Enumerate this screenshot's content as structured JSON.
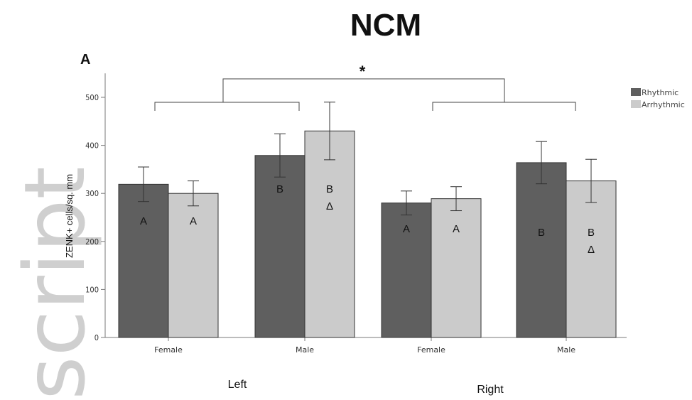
{
  "page": {
    "title": "NCM",
    "panel_label": "A",
    "watermark": "script"
  },
  "colors": {
    "rhythmic": "#5f5f5f",
    "arrhythmic": "#cbcbcb",
    "axis": "#7a7a7a"
  },
  "chart_data": {
    "type": "bar",
    "title": "NCM",
    "ylabel": "ZENK+ cells/sq. mm",
    "xlabel": "",
    "ylim": [
      0,
      550
    ],
    "yticks": [
      0,
      100,
      200,
      300,
      400,
      500
    ],
    "grid": false,
    "legend_position": "top-right",
    "categories": [
      "Female",
      "Male",
      "Female",
      "Male"
    ],
    "groups": [
      {
        "label": "Left",
        "categories": [
          0,
          1
        ]
      },
      {
        "label": "Right",
        "categories": [
          2,
          3
        ]
      }
    ],
    "series": [
      {
        "name": "Rhythmic",
        "color": "#5f5f5f",
        "values": [
          319,
          379,
          280,
          364
        ],
        "error": [
          36,
          45,
          25,
          44
        ],
        "letters": [
          [
            "A"
          ],
          [
            "B"
          ],
          [
            "A"
          ],
          [
            "B"
          ]
        ]
      },
      {
        "name": "Arrhythmic",
        "color": "#cbcbcb",
        "values": [
          300,
          430,
          289,
          326
        ],
        "error": [
          26,
          60,
          25,
          45
        ],
        "letters": [
          [
            "A"
          ],
          [
            "B",
            "Δ"
          ],
          [
            "A"
          ],
          [
            "B",
            "Δ"
          ]
        ]
      }
    ],
    "annotations": {
      "significance_symbol": "*"
    }
  }
}
